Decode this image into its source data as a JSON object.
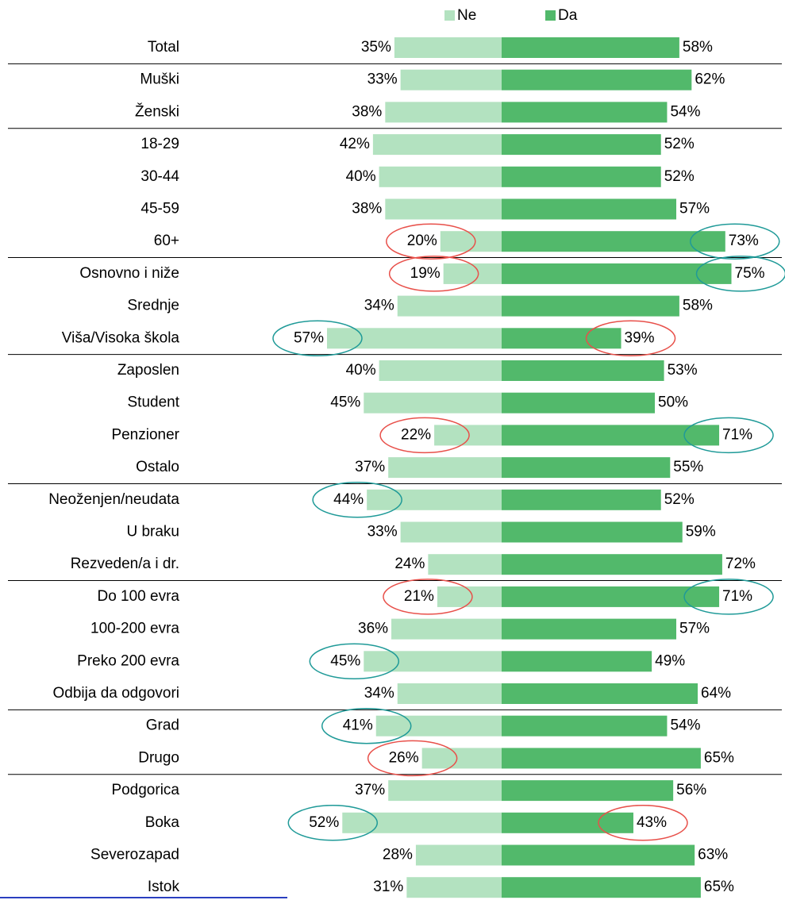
{
  "chart_data": {
    "type": "diverging_bar",
    "categories": [
      "Total",
      "Muški",
      "Ženski",
      "18-29",
      "30-44",
      "45-59",
      "60+",
      "Osnovno i niže",
      "Srednje",
      "Viša/Visoka škola",
      "Zaposlen",
      "Student",
      "Penzioner",
      "Ostalo",
      "Neoženjen/neudata",
      "U braku",
      "Rezveden/a i dr.",
      "Do 100 evra",
      "100-200 evra",
      "Preko 200 evra",
      "Odbija da odgovori",
      "Grad",
      "Drugo",
      "Podgorica",
      "Boka",
      "Severozapad",
      "Istok"
    ],
    "series": [
      {
        "name": "Ne",
        "color": "#b3e2c0",
        "side": "left",
        "values": [
          35,
          33,
          38,
          42,
          40,
          38,
          20,
          19,
          34,
          57,
          40,
          45,
          22,
          37,
          44,
          33,
          24,
          21,
          36,
          45,
          34,
          41,
          26,
          37,
          52,
          28,
          31
        ],
        "value_labels": [
          "35%",
          "33%",
          "38%",
          "42%",
          "40%",
          "38%",
          "20%",
          "19%",
          "34%",
          "57%",
          "40%",
          "45%",
          "22%",
          "37%",
          "44%",
          "33%",
          "24%",
          "21%",
          "36%",
          "45%",
          "34%",
          "41%",
          "26%",
          "37%",
          "52%",
          "28%",
          "31%"
        ]
      },
      {
        "name": "Da",
        "color": "#52b96b",
        "side": "right",
        "values": [
          58,
          62,
          54,
          52,
          52,
          57,
          73,
          75,
          58,
          39,
          53,
          50,
          71,
          55,
          52,
          59,
          72,
          71,
          57,
          49,
          64,
          54,
          65,
          56,
          43,
          63,
          65
        ],
        "value_labels": [
          "58%",
          "62%",
          "54%",
          "52%",
          "52%",
          "57%",
          "73%",
          "75%",
          "58%",
          "39%",
          "53%",
          "50%",
          "71%",
          "55%",
          "52%",
          "59%",
          "72%",
          "71%",
          "57%",
          "49%",
          "64%",
          "54%",
          "65%",
          "56%",
          "43%",
          "63%",
          "65%"
        ]
      }
    ],
    "xlim": [
      0,
      100
    ]
  }
}
